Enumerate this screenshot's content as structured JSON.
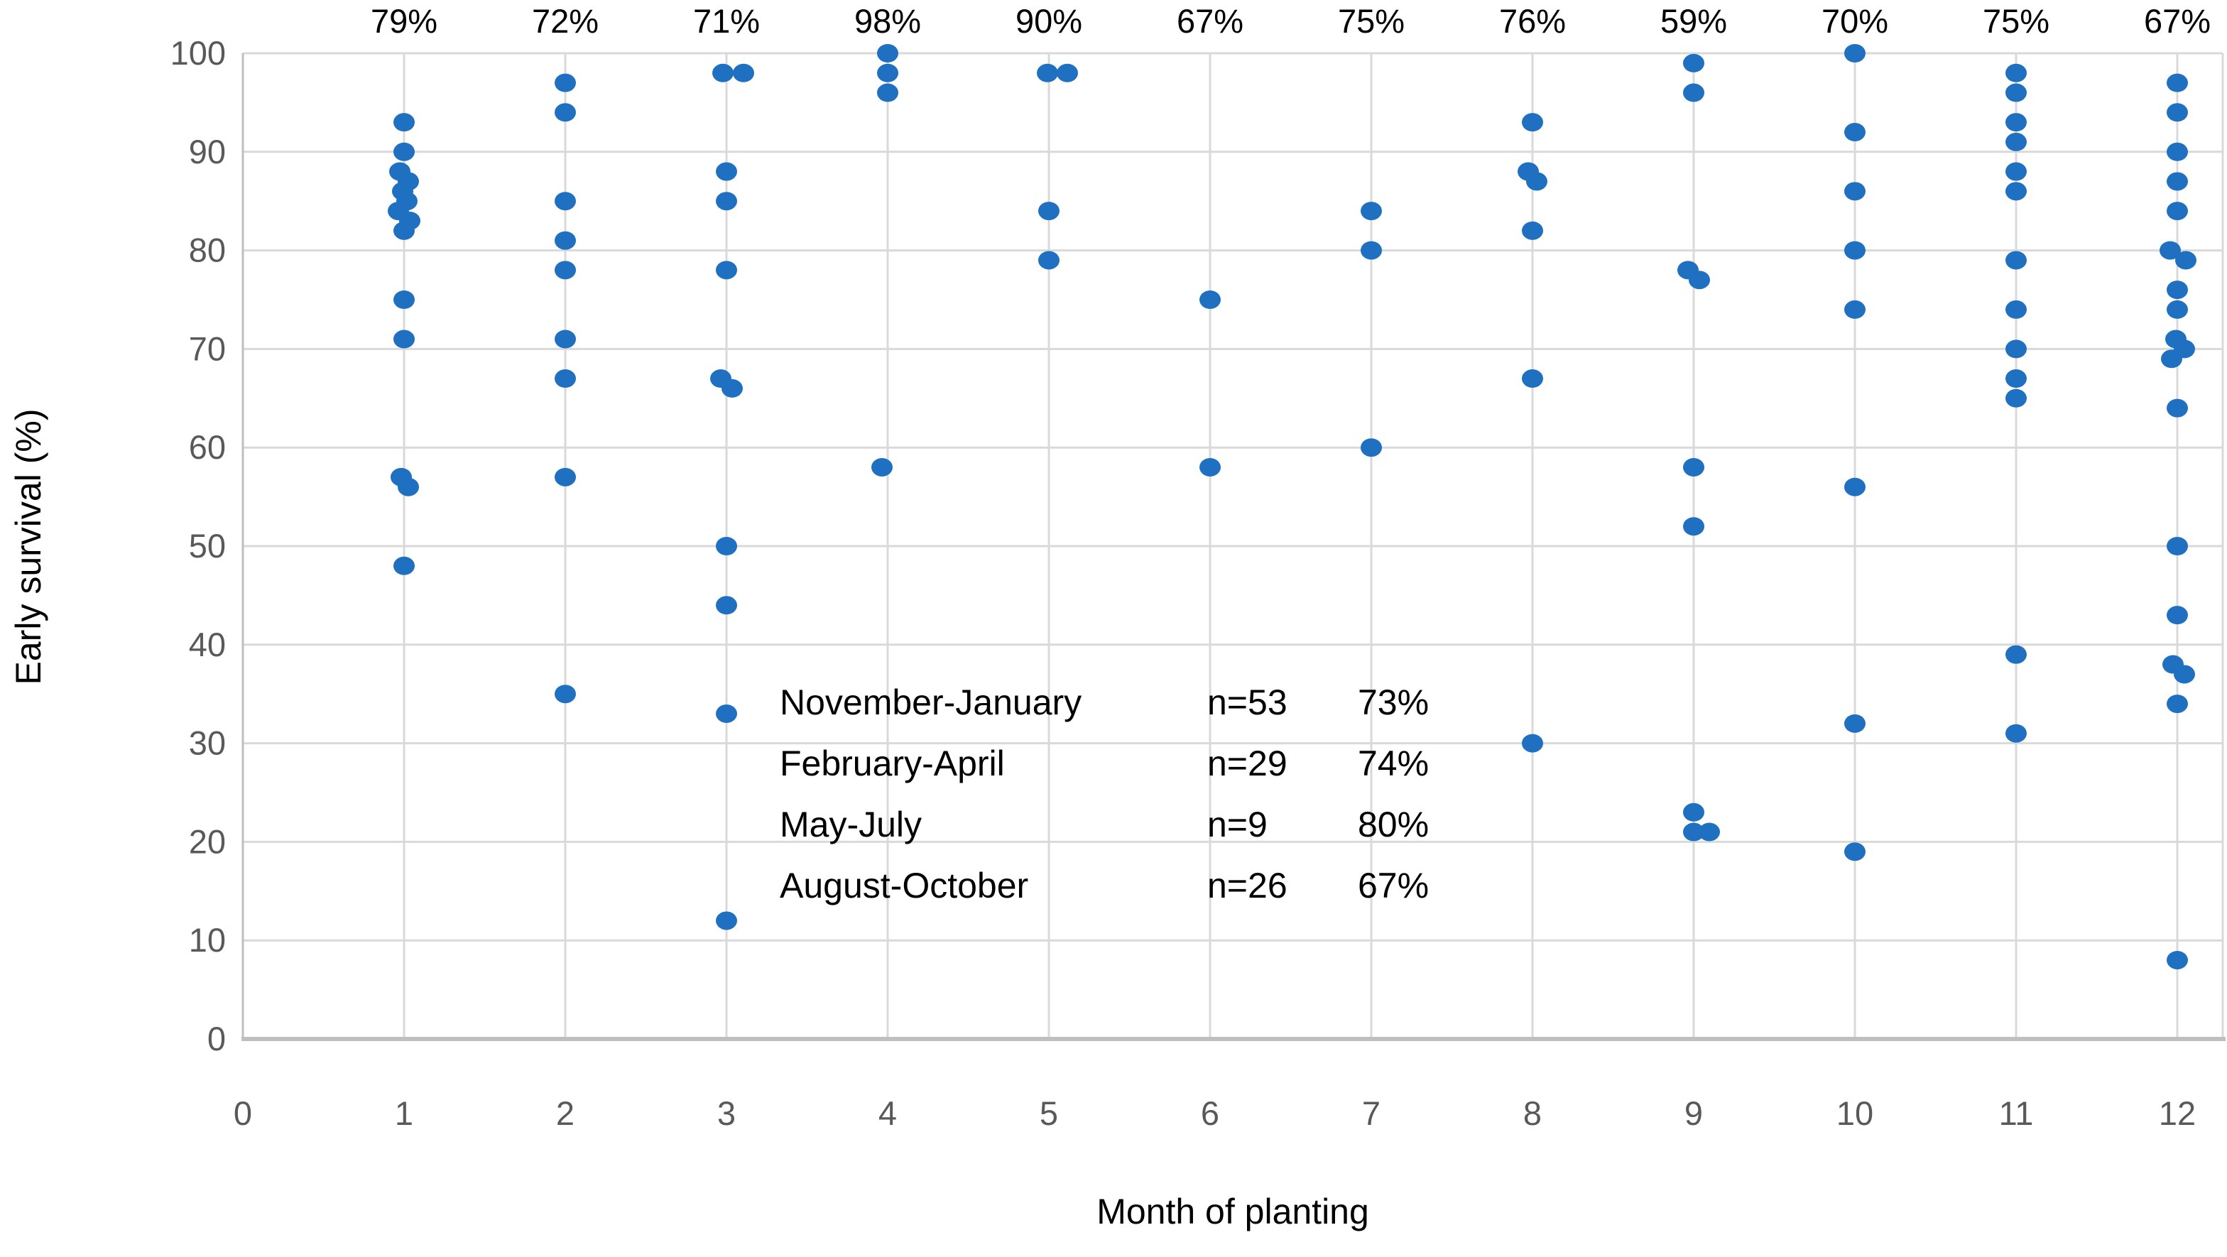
{
  "chart_data": {
    "type": "scatter",
    "title": "",
    "xlabel": "Month of planting",
    "ylabel": "Early survival (%)",
    "xlim": [
      0,
      12
    ],
    "ylim": [
      0,
      100
    ],
    "x_ticks": [
      0,
      1,
      2,
      3,
      4,
      5,
      6,
      7,
      8,
      9,
      10,
      11,
      12
    ],
    "y_ticks": [
      0,
      10,
      20,
      30,
      40,
      50,
      60,
      70,
      80,
      90,
      100
    ],
    "grid": true,
    "legend_position": "inside-lower-middle",
    "marker_color": "#1F70C1",
    "gridline_color": "#D9D9D9",
    "axis_line_color": "#BFBFBF",
    "tick_label_color": "#595959",
    "monthly_labels": [
      {
        "month": 1,
        "label": "79%"
      },
      {
        "month": 2,
        "label": "72%"
      },
      {
        "month": 3,
        "label": "71%"
      },
      {
        "month": 4,
        "label": "98%"
      },
      {
        "month": 5,
        "label": "90%"
      },
      {
        "month": 6,
        "label": "67%"
      },
      {
        "month": 7,
        "label": "75%"
      },
      {
        "month": 8,
        "label": "76%"
      },
      {
        "month": 9,
        "label": "59%"
      },
      {
        "month": 10,
        "label": "70%"
      },
      {
        "month": 11,
        "label": "75%"
      },
      {
        "month": 12,
        "label": "67%"
      }
    ],
    "legend": {
      "rows": [
        {
          "period": "November-January",
          "n": "n=53",
          "pct": "73%"
        },
        {
          "period": "February-April",
          "n": "n=29",
          "pct": "74%"
        },
        {
          "period": "May-July",
          "n": "n=9",
          "pct": "80%"
        },
        {
          "period": "August-October",
          "n": "n=26",
          "pct": "67%"
        }
      ]
    },
    "points": [
      [
        1,
        93,
        0
      ],
      [
        1,
        90,
        0
      ],
      [
        1,
        88,
        -6
      ],
      [
        1,
        87,
        6
      ],
      [
        1,
        86,
        -2
      ],
      [
        1,
        85,
        4
      ],
      [
        1,
        84,
        -8
      ],
      [
        1,
        83,
        8
      ],
      [
        1,
        82,
        0
      ],
      [
        1,
        75,
        0
      ],
      [
        1,
        71,
        0
      ],
      [
        1,
        57,
        -4
      ],
      [
        1,
        56,
        6
      ],
      [
        1,
        48,
        0
      ],
      [
        2,
        97,
        0
      ],
      [
        2,
        94,
        0
      ],
      [
        2,
        85,
        0
      ],
      [
        2,
        81,
        0
      ],
      [
        2,
        78,
        0
      ],
      [
        2,
        71,
        0
      ],
      [
        2,
        67,
        0
      ],
      [
        2,
        57,
        0
      ],
      [
        2,
        35,
        0
      ],
      [
        3,
        98,
        -5
      ],
      [
        3,
        98,
        24
      ],
      [
        3,
        88,
        0
      ],
      [
        3,
        85,
        0
      ],
      [
        3,
        78,
        0
      ],
      [
        3,
        67,
        -8
      ],
      [
        3,
        66,
        8
      ],
      [
        3,
        50,
        0
      ],
      [
        3,
        44,
        0
      ],
      [
        3,
        33,
        0
      ],
      [
        3,
        12,
        0
      ],
      [
        4,
        100,
        0
      ],
      [
        4,
        98,
        0
      ],
      [
        4,
        96,
        0
      ],
      [
        4,
        58,
        -8
      ],
      [
        5,
        98,
        -2
      ],
      [
        5,
        98,
        26
      ],
      [
        5,
        84,
        0
      ],
      [
        5,
        79,
        0
      ],
      [
        6,
        75,
        0
      ],
      [
        6,
        58,
        0
      ],
      [
        7,
        84,
        0
      ],
      [
        7,
        80,
        0
      ],
      [
        7,
        60,
        0
      ],
      [
        8,
        93,
        0
      ],
      [
        8,
        88,
        -6
      ],
      [
        8,
        87,
        6
      ],
      [
        8,
        82,
        0
      ],
      [
        8,
        67,
        0
      ],
      [
        8,
        30,
        0
      ],
      [
        9,
        99,
        0
      ],
      [
        9,
        96,
        0
      ],
      [
        9,
        78,
        -8
      ],
      [
        9,
        77,
        8
      ],
      [
        9,
        58,
        0
      ],
      [
        9,
        52,
        0
      ],
      [
        9,
        23,
        0
      ],
      [
        9,
        21,
        0
      ],
      [
        9,
        21,
        22
      ],
      [
        10,
        100,
        0
      ],
      [
        10,
        92,
        0
      ],
      [
        10,
        86,
        0
      ],
      [
        10,
        80,
        0
      ],
      [
        10,
        74,
        0
      ],
      [
        10,
        56,
        0
      ],
      [
        10,
        32,
        0
      ],
      [
        10,
        19,
        0
      ],
      [
        11,
        98,
        0
      ],
      [
        11,
        96,
        0
      ],
      [
        11,
        93,
        0
      ],
      [
        11,
        91,
        0
      ],
      [
        11,
        88,
        0
      ],
      [
        11,
        86,
        0
      ],
      [
        11,
        79,
        0
      ],
      [
        11,
        74,
        0
      ],
      [
        11,
        70,
        0
      ],
      [
        11,
        67,
        0
      ],
      [
        11,
        65,
        0
      ],
      [
        11,
        39,
        0
      ],
      [
        11,
        31,
        0
      ],
      [
        12,
        97,
        0
      ],
      [
        12,
        94,
        0
      ],
      [
        12,
        90,
        0
      ],
      [
        12,
        87,
        0
      ],
      [
        12,
        84,
        0
      ],
      [
        12,
        80,
        -10
      ],
      [
        12,
        79,
        12
      ],
      [
        12,
        76,
        0
      ],
      [
        12,
        74,
        0
      ],
      [
        12,
        71,
        -2
      ],
      [
        12,
        70,
        10
      ],
      [
        12,
        69,
        -8
      ],
      [
        12,
        64,
        0
      ],
      [
        12,
        50,
        0
      ],
      [
        12,
        43,
        0
      ],
      [
        12,
        38,
        -6
      ],
      [
        12,
        37,
        10
      ],
      [
        12,
        34,
        0
      ],
      [
        12,
        8,
        0
      ]
    ]
  }
}
